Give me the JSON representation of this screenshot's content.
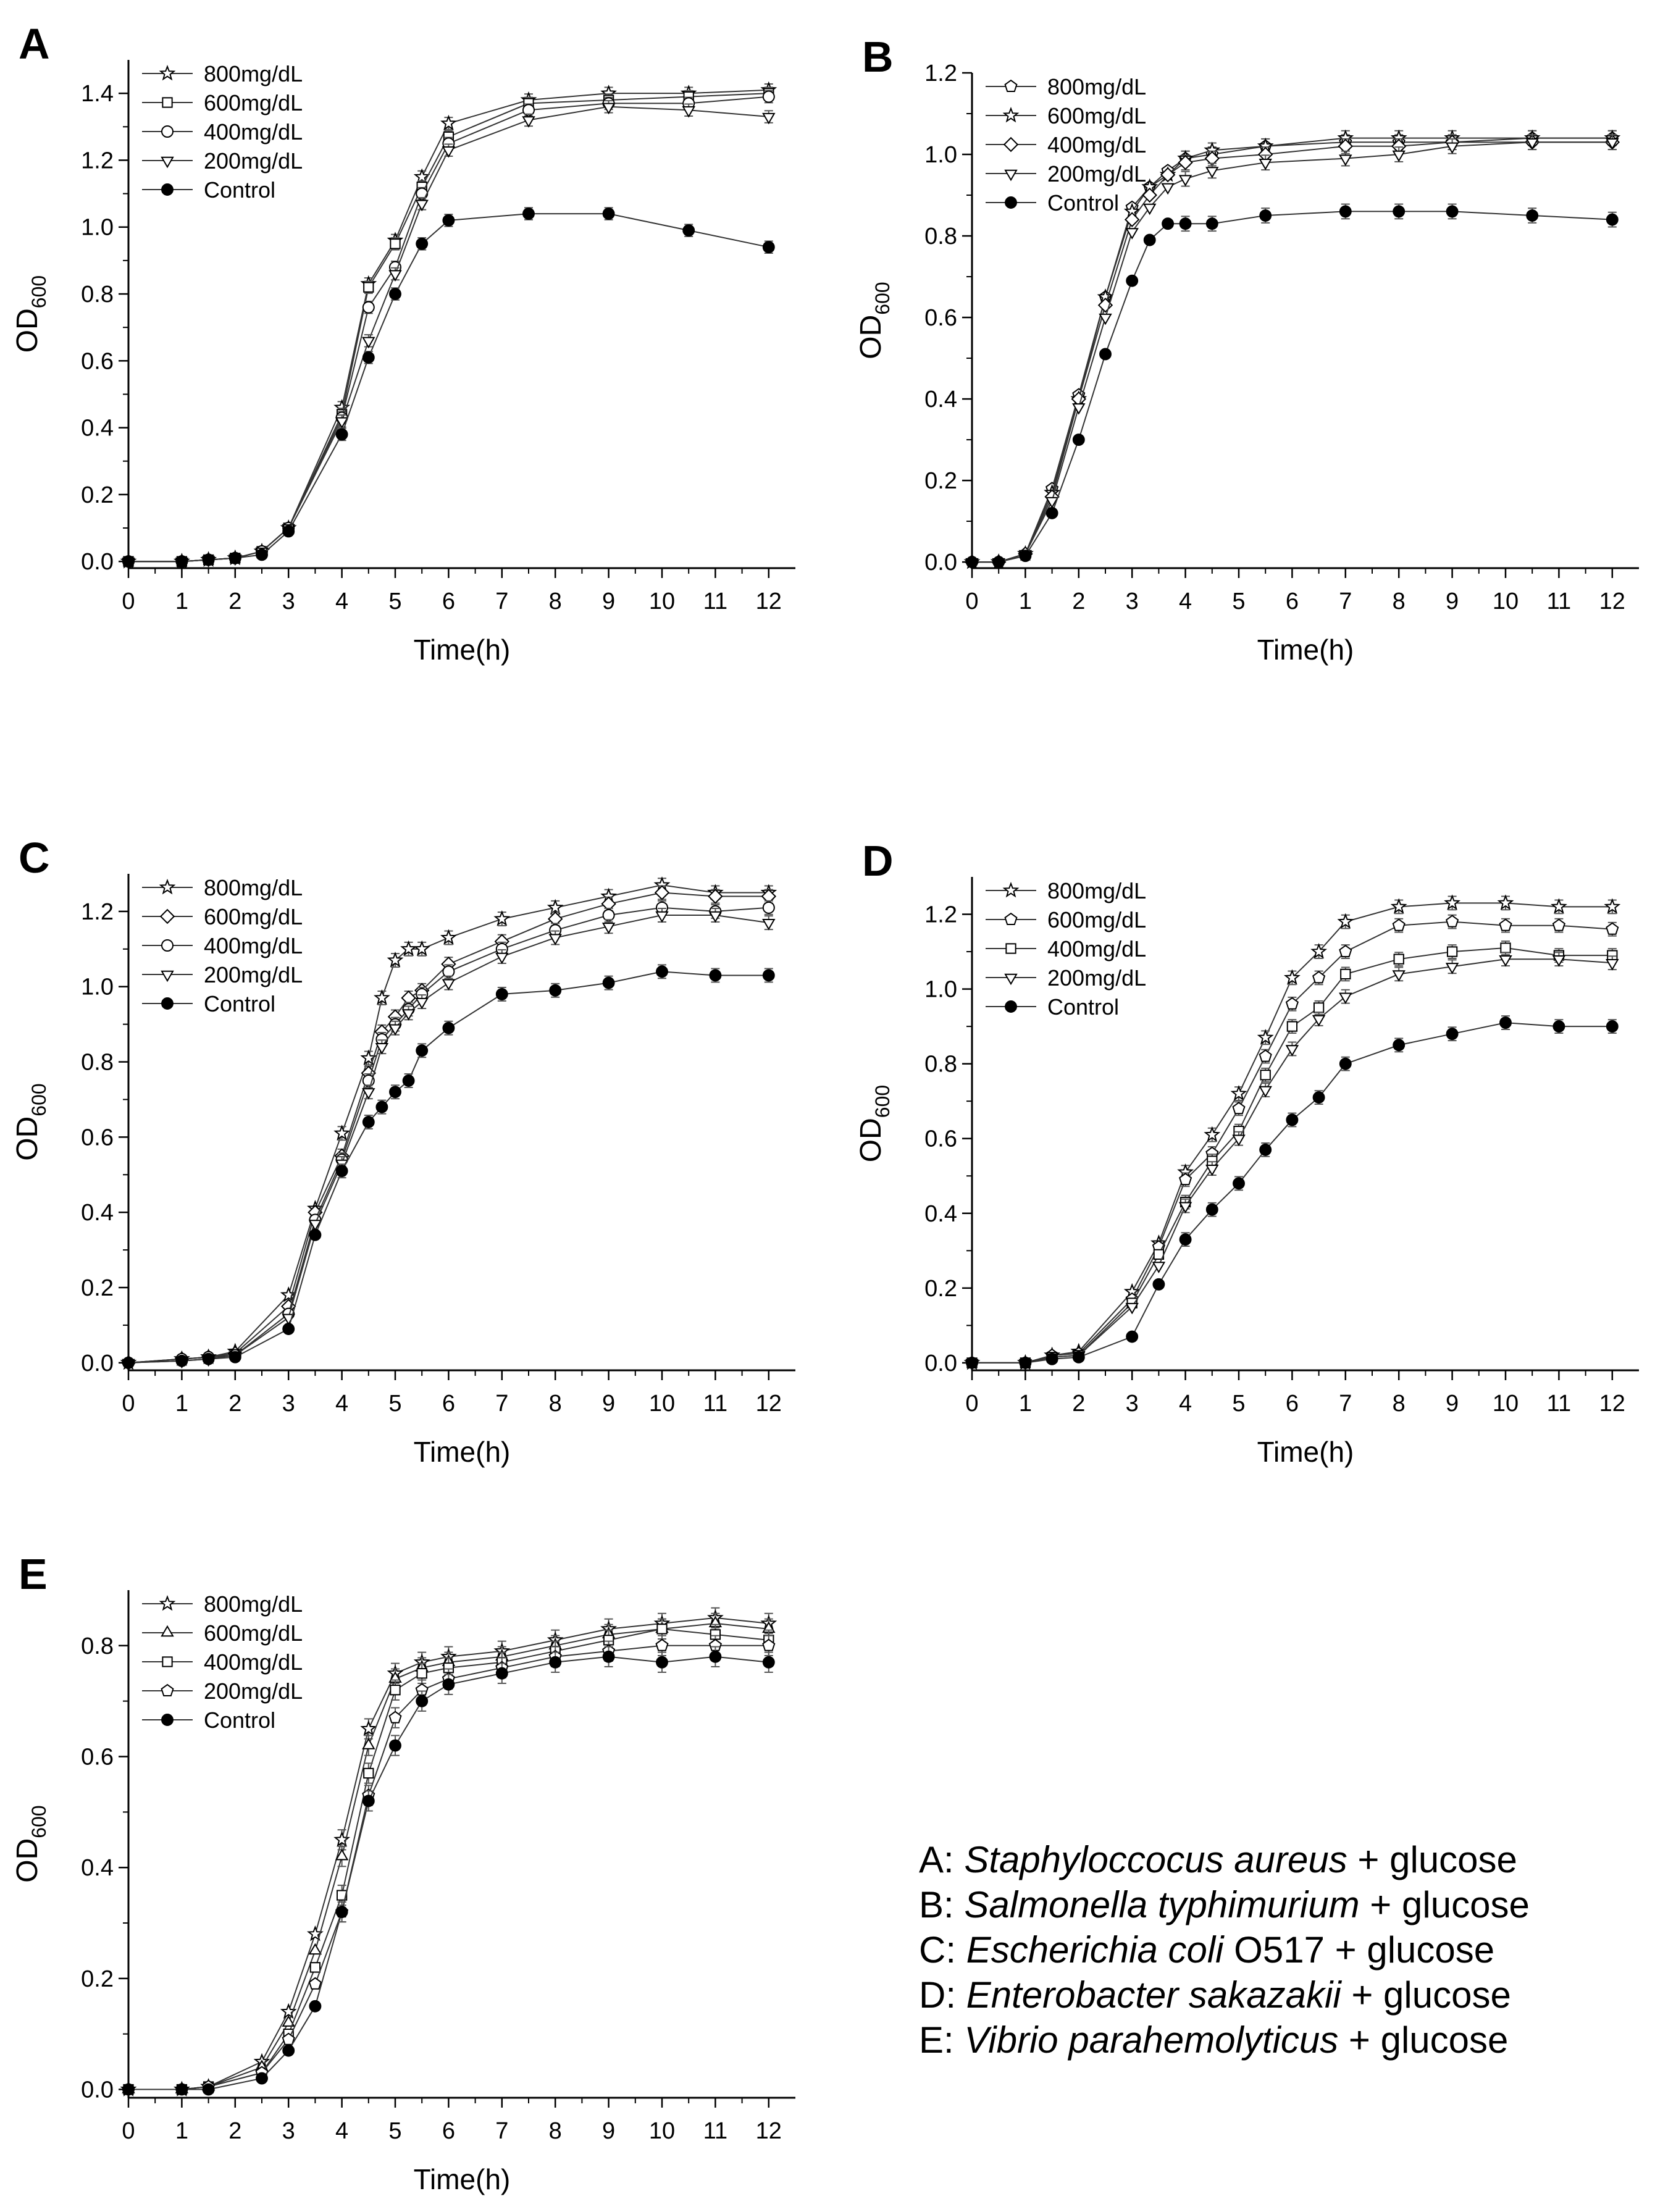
{
  "chart_data": [
    {
      "panel": "A",
      "type": "line",
      "xlabel": "Time(h)",
      "ylabel_main": "OD",
      "ylabel_sub": "600",
      "xlim": [
        0,
        12.5
      ],
      "ylim": [
        -0.02,
        1.5
      ],
      "xticks": [
        "0",
        "1",
        "2",
        "3",
        "4",
        "5",
        "6",
        "7",
        "8",
        "9",
        "10",
        "11",
        "12"
      ],
      "yticks": [
        "0.0",
        "0.2",
        "0.4",
        "0.6",
        "0.8",
        "1.0",
        "1.2",
        "1.4"
      ],
      "legend_position": "top-left",
      "x": [
        0,
        1,
        1.5,
        2,
        2.5,
        3,
        4,
        4.5,
        5,
        5.5,
        6,
        7.5,
        9,
        10.5,
        12
      ],
      "series": [
        {
          "name": "800mg/dL",
          "marker": "star",
          "values": [
            0.0,
            0.0,
            0.005,
            0.01,
            0.03,
            0.1,
            0.46,
            0.83,
            0.96,
            1.15,
            1.31,
            1.38,
            1.4,
            1.4,
            1.41
          ]
        },
        {
          "name": "600mg/dL",
          "marker": "square",
          "values": [
            0.0,
            0.0,
            0.005,
            0.01,
            0.03,
            0.1,
            0.44,
            0.82,
            0.95,
            1.12,
            1.27,
            1.37,
            1.38,
            1.39,
            1.4
          ]
        },
        {
          "name": "400mg/dL",
          "marker": "circle-open",
          "values": [
            0.0,
            0.0,
            0.005,
            0.01,
            0.03,
            0.1,
            0.43,
            0.76,
            0.88,
            1.1,
            1.25,
            1.35,
            1.37,
            1.37,
            1.39
          ]
        },
        {
          "name": "200mg/dL",
          "marker": "triangle-down",
          "values": [
            0.0,
            0.0,
            0.005,
            0.01,
            0.03,
            0.1,
            0.42,
            0.66,
            0.86,
            1.07,
            1.23,
            1.32,
            1.36,
            1.35,
            1.33
          ]
        },
        {
          "name": "Control",
          "marker": "dot",
          "values": [
            0.0,
            0.0,
            0.005,
            0.01,
            0.02,
            0.09,
            0.38,
            0.61,
            0.8,
            0.95,
            1.02,
            1.04,
            1.04,
            0.99,
            0.94
          ]
        }
      ]
    },
    {
      "panel": "B",
      "type": "line",
      "xlabel": "Time(h)",
      "ylabel_main": "OD",
      "ylabel_sub": "600",
      "xlim": [
        0,
        12.5
      ],
      "ylim": [
        -0.015,
        1.2
      ],
      "xticks": [
        "0",
        "1",
        "2",
        "3",
        "4",
        "5",
        "6",
        "7",
        "8",
        "9",
        "10",
        "11",
        "12"
      ],
      "yticks": [
        "0.0",
        "0.2",
        "0.4",
        "0.6",
        "0.8",
        "1.0",
        "1.2"
      ],
      "legend_position": "top-left",
      "x": [
        0,
        0.5,
        1,
        1.5,
        2,
        2.5,
        3,
        3.33,
        3.67,
        4,
        4.5,
        5.5,
        7,
        8,
        9,
        10.5,
        12
      ],
      "series": [
        {
          "name": "800mg/dL",
          "marker": "pentagon",
          "values": [
            0.0,
            0.0,
            0.02,
            0.18,
            0.41,
            0.65,
            0.87,
            0.92,
            0.96,
            0.99,
            1.0,
            1.02,
            1.03,
            1.03,
            1.03,
            1.04,
            1.04
          ]
        },
        {
          "name": "600mg/dL",
          "marker": "star",
          "values": [
            0.0,
            0.0,
            0.02,
            0.17,
            0.4,
            0.65,
            0.86,
            0.92,
            0.95,
            0.99,
            1.01,
            1.02,
            1.04,
            1.04,
            1.04,
            1.04,
            1.04
          ]
        },
        {
          "name": "400mg/dL",
          "marker": "diamond",
          "values": [
            0.0,
            0.0,
            0.02,
            0.16,
            0.4,
            0.63,
            0.84,
            0.9,
            0.95,
            0.98,
            0.99,
            1.0,
            1.02,
            1.02,
            1.03,
            1.03,
            1.03
          ]
        },
        {
          "name": "200mg/dL",
          "marker": "triangle-down",
          "values": [
            0.0,
            0.0,
            0.02,
            0.15,
            0.38,
            0.6,
            0.81,
            0.87,
            0.92,
            0.94,
            0.96,
            0.98,
            0.99,
            1.0,
            1.02,
            1.03,
            1.03
          ]
        },
        {
          "name": "Control",
          "marker": "dot",
          "values": [
            0.0,
            0.0,
            0.015,
            0.12,
            0.3,
            0.51,
            0.69,
            0.79,
            0.83,
            0.83,
            0.83,
            0.85,
            0.86,
            0.86,
            0.86,
            0.85,
            0.84
          ]
        }
      ]
    },
    {
      "panel": "C",
      "type": "line",
      "xlabel": "Time(h)",
      "ylabel_main": "OD",
      "ylabel_sub": "600",
      "xlim": [
        0,
        12.5
      ],
      "ylim": [
        -0.02,
        1.3
      ],
      "xticks": [
        "0",
        "1",
        "2",
        "3",
        "4",
        "5",
        "6",
        "7",
        "8",
        "9",
        "10",
        "11",
        "12"
      ],
      "yticks": [
        "0.0",
        "0.2",
        "0.4",
        "0.6",
        "0.8",
        "1.0",
        "1.2"
      ],
      "legend_position": "top-left",
      "x": [
        0,
        1,
        1.5,
        2,
        3,
        3.5,
        4,
        4.5,
        4.75,
        5,
        5.25,
        5.5,
        6,
        7,
        8,
        9,
        10,
        11,
        12
      ],
      "series": [
        {
          "name": "800mg/dL",
          "marker": "star",
          "values": [
            0.0,
            0.01,
            0.015,
            0.03,
            0.18,
            0.41,
            0.61,
            0.81,
            0.97,
            1.07,
            1.1,
            1.1,
            1.13,
            1.18,
            1.21,
            1.24,
            1.27,
            1.25,
            1.25
          ]
        },
        {
          "name": "600mg/dL",
          "marker": "diamond",
          "values": [
            0.0,
            0.01,
            0.015,
            0.025,
            0.15,
            0.4,
            0.55,
            0.77,
            0.88,
            0.92,
            0.97,
            0.99,
            1.06,
            1.12,
            1.18,
            1.22,
            1.25,
            1.24,
            1.24
          ]
        },
        {
          "name": "400mg/dL",
          "marker": "circle-open",
          "values": [
            0.0,
            0.01,
            0.015,
            0.02,
            0.13,
            0.38,
            0.54,
            0.75,
            0.86,
            0.9,
            0.94,
            0.98,
            1.04,
            1.1,
            1.15,
            1.19,
            1.21,
            1.2,
            1.21
          ]
        },
        {
          "name": "200mg/dL",
          "marker": "triangle-down",
          "values": [
            0.0,
            0.005,
            0.01,
            0.02,
            0.12,
            0.37,
            0.53,
            0.72,
            0.84,
            0.89,
            0.93,
            0.96,
            1.01,
            1.08,
            1.13,
            1.16,
            1.19,
            1.19,
            1.17
          ]
        },
        {
          "name": "Control",
          "marker": "dot",
          "values": [
            0.0,
            0.005,
            0.01,
            0.015,
            0.09,
            0.34,
            0.51,
            0.64,
            0.68,
            0.72,
            0.75,
            0.83,
            0.89,
            0.98,
            0.99,
            1.01,
            1.04,
            1.03,
            1.03
          ]
        }
      ]
    },
    {
      "panel": "D",
      "type": "line",
      "xlabel": "Time(h)",
      "ylabel_main": "OD",
      "ylabel_sub": "600",
      "xlim": [
        0,
        12.5
      ],
      "ylim": [
        -0.02,
        1.3
      ],
      "xticks": [
        "0",
        "1",
        "2",
        "3",
        "4",
        "5",
        "6",
        "7",
        "8",
        "9",
        "10",
        "11",
        "12"
      ],
      "yticks": [
        "0.0",
        "0.2",
        "0.4",
        "0.6",
        "0.8",
        "1.0",
        "1.2"
      ],
      "legend_position": "top-left",
      "x": [
        0,
        1,
        1.5,
        2,
        3,
        3.5,
        4,
        4.5,
        5,
        5.5,
        6,
        6.5,
        7,
        8,
        9,
        10,
        11,
        12
      ],
      "series": [
        {
          "name": "800mg/dL",
          "marker": "star",
          "values": [
            0.0,
            0.0,
            0.02,
            0.03,
            0.19,
            0.32,
            0.51,
            0.61,
            0.72,
            0.87,
            1.03,
            1.1,
            1.18,
            1.22,
            1.23,
            1.23,
            1.22,
            1.22
          ]
        },
        {
          "name": "600mg/dL",
          "marker": "pentagon",
          "values": [
            0.0,
            0.0,
            0.02,
            0.025,
            0.17,
            0.31,
            0.49,
            0.56,
            0.68,
            0.82,
            0.96,
            1.03,
            1.1,
            1.17,
            1.18,
            1.17,
            1.17,
            1.16
          ]
        },
        {
          "name": "400mg/dL",
          "marker": "square",
          "values": [
            0.0,
            0.0,
            0.015,
            0.02,
            0.16,
            0.29,
            0.43,
            0.54,
            0.62,
            0.77,
            0.9,
            0.95,
            1.04,
            1.08,
            1.1,
            1.11,
            1.09,
            1.09
          ]
        },
        {
          "name": "200mg/dL",
          "marker": "triangle-down",
          "values": [
            0.0,
            0.0,
            0.015,
            0.02,
            0.15,
            0.26,
            0.42,
            0.52,
            0.6,
            0.73,
            0.84,
            0.92,
            0.98,
            1.04,
            1.06,
            1.08,
            1.08,
            1.07
          ]
        },
        {
          "name": "Control",
          "marker": "dot",
          "values": [
            0.0,
            0.0,
            0.01,
            0.015,
            0.07,
            0.21,
            0.33,
            0.41,
            0.48,
            0.57,
            0.65,
            0.71,
            0.8,
            0.85,
            0.88,
            0.91,
            0.9,
            0.9
          ]
        }
      ]
    },
    {
      "panel": "E",
      "type": "line",
      "xlabel": "Time(h)",
      "ylabel_main": "OD",
      "ylabel_sub": "600",
      "xlim": [
        0,
        12.5
      ],
      "ylim": [
        -0.015,
        0.9
      ],
      "xticks": [
        "0",
        "1",
        "2",
        "3",
        "4",
        "5",
        "6",
        "7",
        "8",
        "9",
        "10",
        "11",
        "12"
      ],
      "yticks": [
        "0.0",
        "0.2",
        "0.4",
        "0.6",
        "0.8"
      ],
      "legend_position": "top-left",
      "x": [
        0,
        1,
        1.5,
        2.5,
        3,
        3.5,
        4,
        4.5,
        5,
        5.5,
        6,
        7,
        8,
        9,
        10,
        11,
        12
      ],
      "series": [
        {
          "name": "800mg/dL",
          "marker": "star",
          "values": [
            0.0,
            0.0,
            0.005,
            0.05,
            0.14,
            0.28,
            0.45,
            0.65,
            0.75,
            0.77,
            0.78,
            0.79,
            0.81,
            0.83,
            0.84,
            0.85,
            0.84
          ]
        },
        {
          "name": "600mg/dL",
          "marker": "triangle-up",
          "values": [
            0.0,
            0.0,
            0.005,
            0.04,
            0.12,
            0.25,
            0.42,
            0.62,
            0.74,
            0.76,
            0.77,
            0.78,
            0.8,
            0.82,
            0.83,
            0.84,
            0.83
          ]
        },
        {
          "name": "400mg/dL",
          "marker": "square",
          "values": [
            0.0,
            0.0,
            0.005,
            0.03,
            0.1,
            0.22,
            0.35,
            0.57,
            0.72,
            0.75,
            0.76,
            0.77,
            0.79,
            0.81,
            0.83,
            0.82,
            0.81
          ]
        },
        {
          "name": "200mg/dL",
          "marker": "pentagon",
          "values": [
            0.0,
            0.0,
            0.005,
            0.03,
            0.09,
            0.19,
            0.32,
            0.53,
            0.67,
            0.72,
            0.74,
            0.76,
            0.78,
            0.79,
            0.8,
            0.8,
            0.8
          ]
        },
        {
          "name": "Control",
          "marker": "dot",
          "values": [
            0.0,
            0.0,
            0.0,
            0.02,
            0.07,
            0.15,
            0.32,
            0.52,
            0.62,
            0.7,
            0.73,
            0.75,
            0.77,
            0.78,
            0.77,
            0.78,
            0.77
          ]
        }
      ]
    }
  ],
  "caption": [
    {
      "prefix": "A: ",
      "italic": "Staphyloccocus aureus",
      "suffix": " + glucose"
    },
    {
      "prefix": "B: ",
      "italic": "Salmonella typhimurium",
      "suffix": " + glucose"
    },
    {
      "prefix": "C: ",
      "italic": "Escherichia coli",
      "suffix": " O517 + glucose"
    },
    {
      "prefix": "D: ",
      "italic": "Enterobacter sakazakii",
      "suffix": " + glucose"
    },
    {
      "prefix": "E: ",
      "italic": "Vibrio parahemolyticus",
      "suffix": " + glucose"
    }
  ]
}
